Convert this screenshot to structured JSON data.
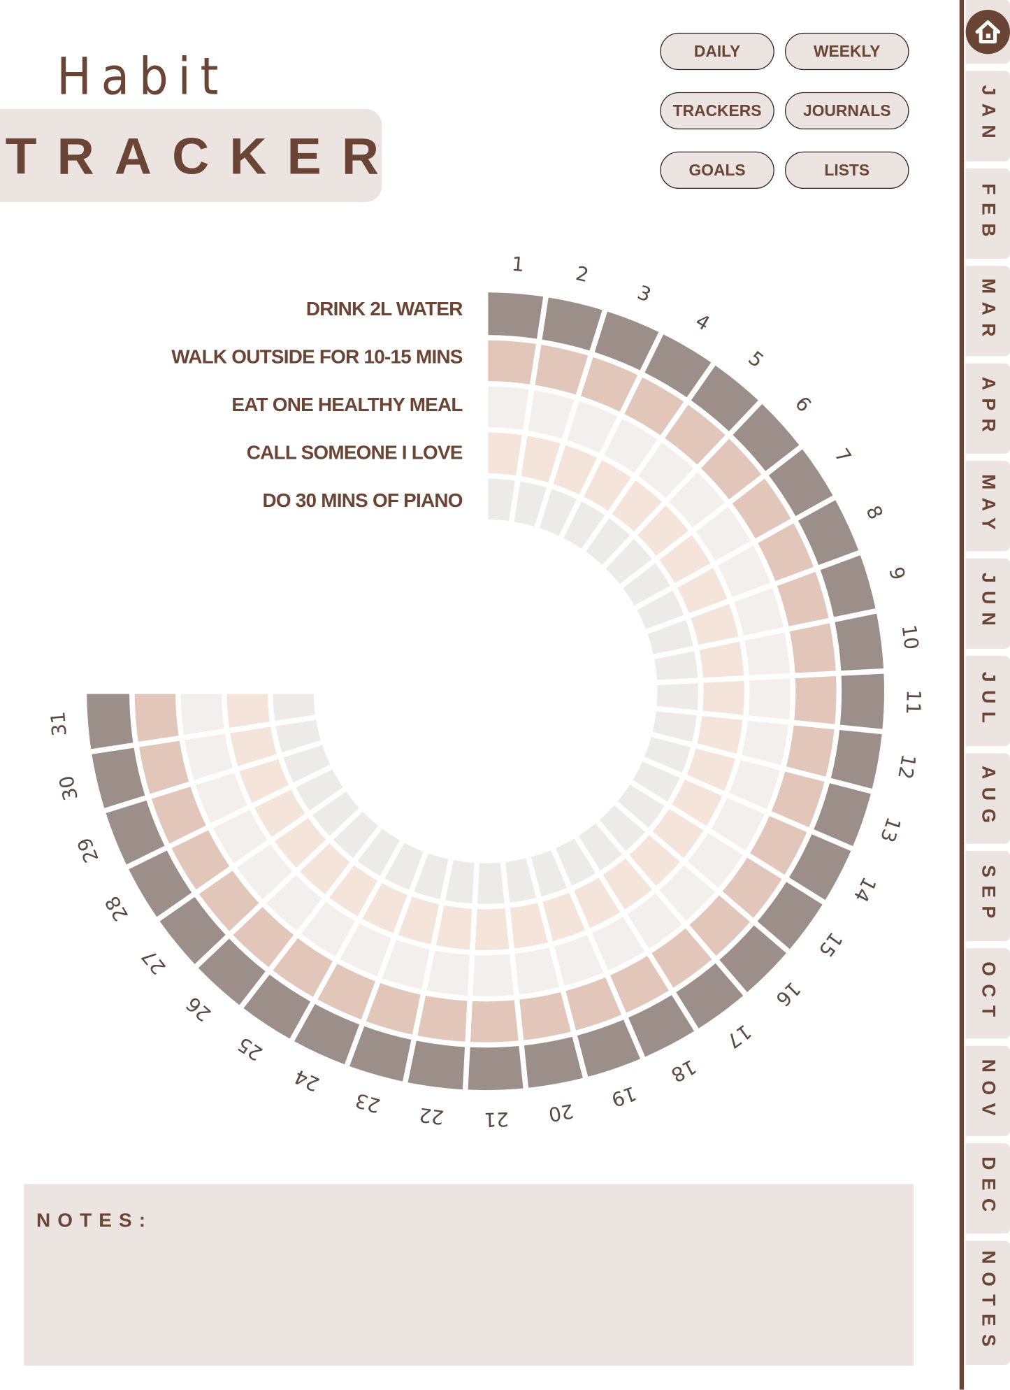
{
  "header": {
    "title_line1": "Habit",
    "title_line2": "TRACKER"
  },
  "nav_buttons": [
    "DAILY",
    "WEEKLY",
    "TRACKERS",
    "JOURNALS",
    "GOALS",
    "LISTS"
  ],
  "sidebar": {
    "home_icon": "home-icon",
    "tabs": [
      "JAN",
      "FEB",
      "MAR",
      "APR",
      "MAY",
      "JUN",
      "JUL",
      "AUG",
      "SEP",
      "OCT",
      "NOV",
      "DEC",
      "NOTES"
    ]
  },
  "notes": {
    "label": "NOTES:"
  },
  "colors": {
    "brand": "#6a4434",
    "panel": "#ebe4e0"
  },
  "chart_data": {
    "type": "heatmap",
    "layout": "radial",
    "habits": [
      "DRINK 2L WATER",
      "WALK OUTSIDE FOR 10-15 MINS",
      "EAT ONE HEALTHY MEAL",
      "CALL SOMEONE I LOVE",
      "DO 30 MINS OF PIANO"
    ],
    "ring_colors": [
      "#9c8f89",
      "#e1c6b9",
      "#f3efed",
      "#f5e4da",
      "#ecebe7"
    ],
    "days": [
      "1",
      "2",
      "3",
      "4",
      "5",
      "6",
      "7",
      "8",
      "9",
      "10",
      "11",
      "12",
      "13",
      "14",
      "15",
      "16",
      "17",
      "18",
      "19",
      "20",
      "21",
      "22",
      "23",
      "24",
      "25",
      "26",
      "27",
      "28",
      "29",
      "30",
      "31"
    ]
  }
}
